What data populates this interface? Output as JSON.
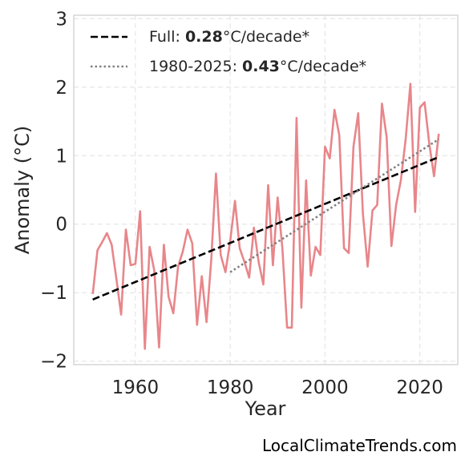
{
  "chart_data": {
    "type": "line",
    "xlabel": "Year",
    "ylabel": "Anomaly (°C)",
    "xlim": [
      1947,
      2028
    ],
    "ylim": [
      -2.05,
      3.05
    ],
    "xticks": [
      1960,
      1980,
      2000,
      2020
    ],
    "yticks": [
      -2,
      -1,
      0,
      1,
      2,
      3
    ],
    "ytick_labels": [
      "−2",
      "−1",
      "0",
      "1",
      "2",
      "3"
    ],
    "grid": true,
    "legend_position": "top-left",
    "series": [
      {
        "color": "#e8868a",
        "x": [
          1951,
          1952,
          1953,
          1954,
          1955,
          1956,
          1957,
          1958,
          1959,
          1960,
          1961,
          1962,
          1963,
          1964,
          1965,
          1966,
          1967,
          1968,
          1969,
          1970,
          1971,
          1972,
          1973,
          1974,
          1975,
          1976,
          1977,
          1978,
          1979,
          1980,
          1981,
          1982,
          1983,
          1984,
          1985,
          1986,
          1987,
          1988,
          1989,
          1990,
          1991,
          1992,
          1993,
          1994,
          1995,
          1996,
          1997,
          1998,
          1999,
          2000,
          2001,
          2002,
          2003,
          2004,
          2005,
          2006,
          2007,
          2008,
          2009,
          2010,
          2011,
          2012,
          2013,
          2014,
          2015,
          2016,
          2017,
          2018,
          2019,
          2020,
          2021,
          2022,
          2023,
          2024
        ],
        "y": [
          -1.02,
          -0.38,
          -0.26,
          -0.13,
          -0.3,
          -0.8,
          -1.32,
          -0.08,
          -0.6,
          -0.58,
          0.19,
          -1.82,
          -0.33,
          -0.68,
          -1.8,
          -0.3,
          -1.06,
          -1.3,
          -0.62,
          -0.4,
          -0.08,
          -0.28,
          -1.47,
          -0.76,
          -1.43,
          -0.52,
          0.74,
          -0.45,
          -0.7,
          -0.25,
          0.34,
          -0.35,
          -0.55,
          -0.78,
          -0.05,
          -0.55,
          -0.88,
          0.57,
          -0.6,
          0.39,
          -0.35,
          -1.51,
          -1.51,
          1.55,
          -1.22,
          0.64,
          -0.75,
          -0.33,
          -0.45,
          1.13,
          0.96,
          1.67,
          1.3,
          -0.35,
          -0.42,
          1.13,
          1.62,
          0.15,
          -0.62,
          0.2,
          0.28,
          1.76,
          1.27,
          -0.32,
          0.28,
          0.64,
          1.24,
          2.05,
          0.18,
          1.7,
          1.78,
          1.17,
          0.7,
          1.32
        ]
      }
    ],
    "trend_lines": [
      {
        "style": "dashed",
        "color": "#000000",
        "x": [
          1951,
          2024
        ],
        "y": [
          -1.1,
          0.98
        ]
      },
      {
        "style": "dotted",
        "color": "#808080",
        "x": [
          1980,
          2024
        ],
        "y": [
          -0.7,
          1.24
        ]
      }
    ],
    "legend": [
      {
        "prefix": "Full: ",
        "value": "0.28",
        "suffix": "°C/decade*",
        "style": "dashed",
        "color": "#000000"
      },
      {
        "prefix": "1980-2025: ",
        "value": "0.43",
        "suffix": "°C/decade*",
        "style": "dotted",
        "color": "#808080"
      }
    ]
  },
  "watermark": "LocalClimateTrends.com"
}
